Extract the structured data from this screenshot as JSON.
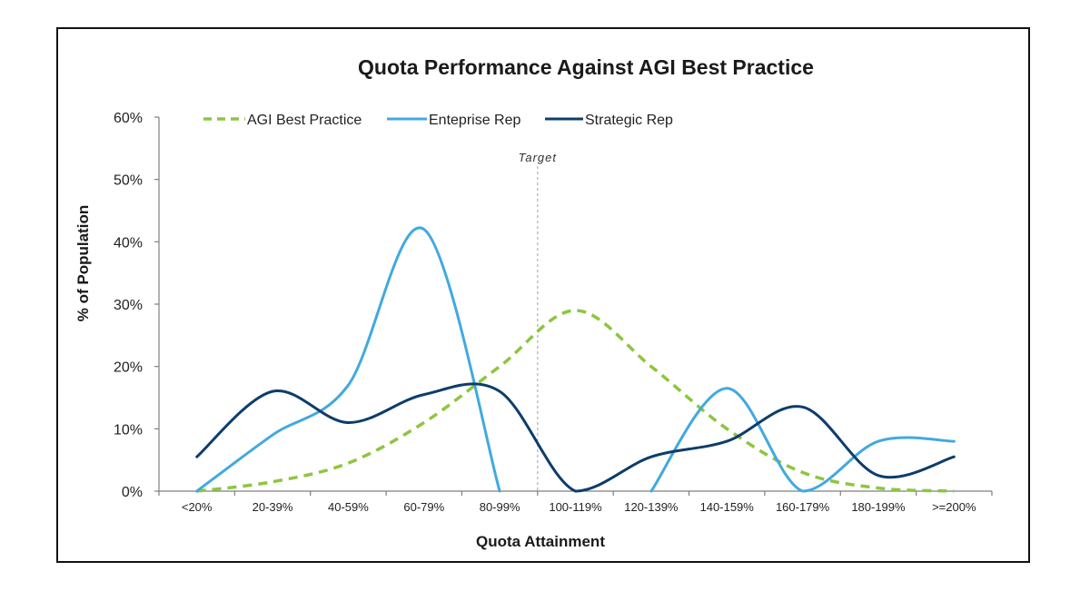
{
  "chart_data": {
    "type": "line",
    "title": "Quota Performance Against AGI Best Practice",
    "xlabel": "Quota Attainment",
    "ylabel": "% of Population",
    "categories": [
      "<20%",
      "20-39%",
      "40-59%",
      "60-79%",
      "80-99%",
      "100-119%",
      "120-139%",
      "140-159%",
      "160-179%",
      "180-199%",
      ">=200%"
    ],
    "yticks": [
      "0%",
      "10%",
      "20%",
      "30%",
      "40%",
      "50%",
      "60%"
    ],
    "ylim": [
      0,
      60
    ],
    "grid": false,
    "legend_position": "top",
    "annotation": "Target",
    "series": [
      {
        "name": "AGI Best Practice",
        "color": "#8dc63f",
        "dashed": true,
        "values": [
          0,
          1.5,
          4.5,
          11,
          20,
          29,
          20,
          10,
          3,
          0.5,
          0
        ]
      },
      {
        "name": "Enteprise Rep",
        "color": "#41a9e0",
        "dashed": false,
        "values": [
          0,
          9,
          17,
          42,
          0,
          null,
          0,
          16.5,
          0,
          8,
          8
        ]
      },
      {
        "name": "Strategic Rep",
        "color": "#0d3d6b",
        "dashed": false,
        "values": [
          5.5,
          16,
          11,
          15.5,
          16,
          0,
          5.5,
          8,
          13.5,
          2.5,
          5.5
        ]
      }
    ]
  }
}
